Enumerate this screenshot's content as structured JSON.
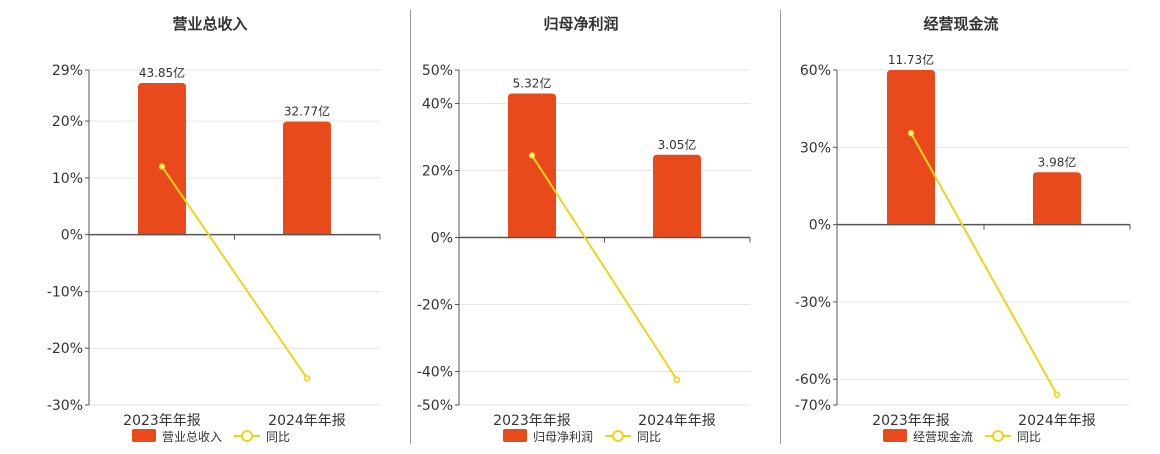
{
  "colors": {
    "bar": "#E84A1B",
    "line": "#F2D21B",
    "marker_fill": "#FFF8C4",
    "axis": "#555555",
    "grid": "#E6E6E6",
    "text": "#333333"
  },
  "chart_data": [
    {
      "type": "bar",
      "title": "营业总收入",
      "categories": [
        "2023年年报",
        "2024年年报"
      ],
      "series": [
        {
          "name": "营业总收入",
          "type": "bar",
          "values": [
            26.7,
            19.9
          ],
          "labels": [
            "43.85亿",
            "32.77亿"
          ]
        },
        {
          "name": "同比",
          "type": "line",
          "values": [
            12.0,
            -25.3
          ]
        }
      ],
      "ylim": [
        -30,
        29
      ],
      "yticks": [
        -30,
        -20,
        -10,
        0,
        10,
        20,
        29
      ],
      "ytick_labels": [
        "-30%",
        "-20%",
        "-10%",
        "0%",
        "10%",
        "20%",
        "29%"
      ],
      "legend": [
        "营业总收入",
        "同比"
      ],
      "legend_position": "bottom",
      "grid": true
    },
    {
      "type": "bar",
      "title": "归母净利润",
      "categories": [
        "2023年年报",
        "2024年年报"
      ],
      "series": [
        {
          "name": "归母净利润",
          "type": "bar",
          "values": [
            43.0,
            24.7
          ],
          "labels": [
            "5.32亿",
            "3.05亿"
          ]
        },
        {
          "name": "同比",
          "type": "line",
          "values": [
            24.5,
            -42.5
          ]
        }
      ],
      "ylim": [
        -50,
        50
      ],
      "yticks": [
        -50,
        -40,
        -20,
        0,
        20,
        40,
        50
      ],
      "ytick_labels": [
        "-50%",
        "-40%",
        "-20%",
        "0%",
        "20%",
        "40%",
        "50%"
      ],
      "legend": [
        "归母净利润",
        "同比"
      ],
      "legend_position": "bottom",
      "grid": true
    },
    {
      "type": "bar",
      "title": "经营现金流",
      "categories": [
        "2023年年报",
        "2024年年报"
      ],
      "series": [
        {
          "name": "经营现金流",
          "type": "bar",
          "values": [
            60.0,
            20.3
          ],
          "labels": [
            "11.73亿",
            "3.98亿"
          ]
        },
        {
          "name": "同比",
          "type": "line",
          "values": [
            35.5,
            -66.0
          ]
        }
      ],
      "ylim": [
        -70,
        60
      ],
      "yticks": [
        -70,
        -60,
        -30,
        0,
        30,
        60
      ],
      "ytick_labels": [
        "-70%",
        "-60%",
        "-30%",
        "0%",
        "30%",
        "60%"
      ],
      "legend": [
        "经营现金流",
        "同比"
      ],
      "legend_position": "bottom",
      "grid": true
    }
  ]
}
